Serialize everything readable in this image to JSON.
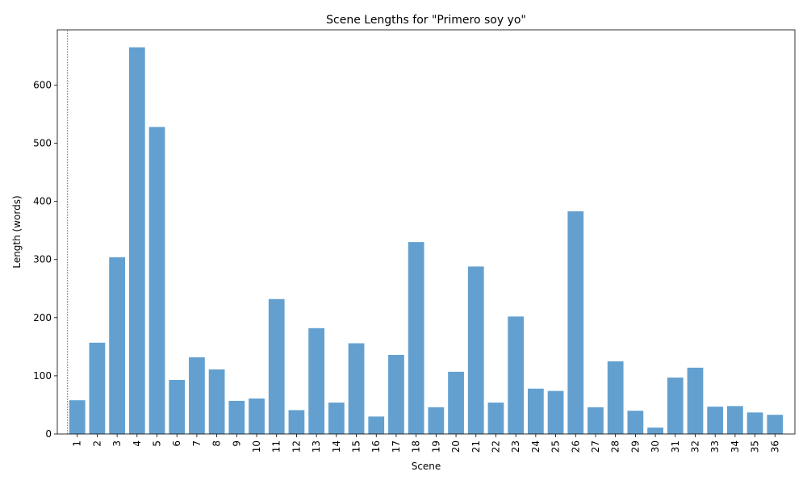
{
  "chart_data": {
    "type": "bar",
    "title": "Scene Lengths for \"Primero soy yo\"",
    "xlabel": "Scene",
    "ylabel": "Length (words)",
    "ylim": [
      0,
      695
    ],
    "yticks": [
      0,
      100,
      200,
      300,
      400,
      500,
      600
    ],
    "categories": [
      "1",
      "2",
      "3",
      "4",
      "5",
      "6",
      "7",
      "8",
      "9",
      "10",
      "11",
      "12",
      "13",
      "14",
      "15",
      "16",
      "17",
      "18",
      "19",
      "20",
      "21",
      "22",
      "23",
      "24",
      "25",
      "26",
      "27",
      "28",
      "29",
      "30",
      "31",
      "32",
      "33",
      "34",
      "35",
      "36"
    ],
    "values": [
      58,
      157,
      304,
      665,
      528,
      93,
      132,
      111,
      57,
      61,
      232,
      41,
      182,
      54,
      156,
      30,
      136,
      330,
      46,
      107,
      288,
      54,
      202,
      78,
      74,
      383,
      46,
      125,
      40,
      11,
      97,
      114,
      47,
      48,
      37,
      33
    ],
    "bar_color": "#5b9bcc",
    "marker_line": {
      "at_category": "1",
      "style": "dotted",
      "color": "#000000"
    },
    "grid": false,
    "legend": "none"
  }
}
